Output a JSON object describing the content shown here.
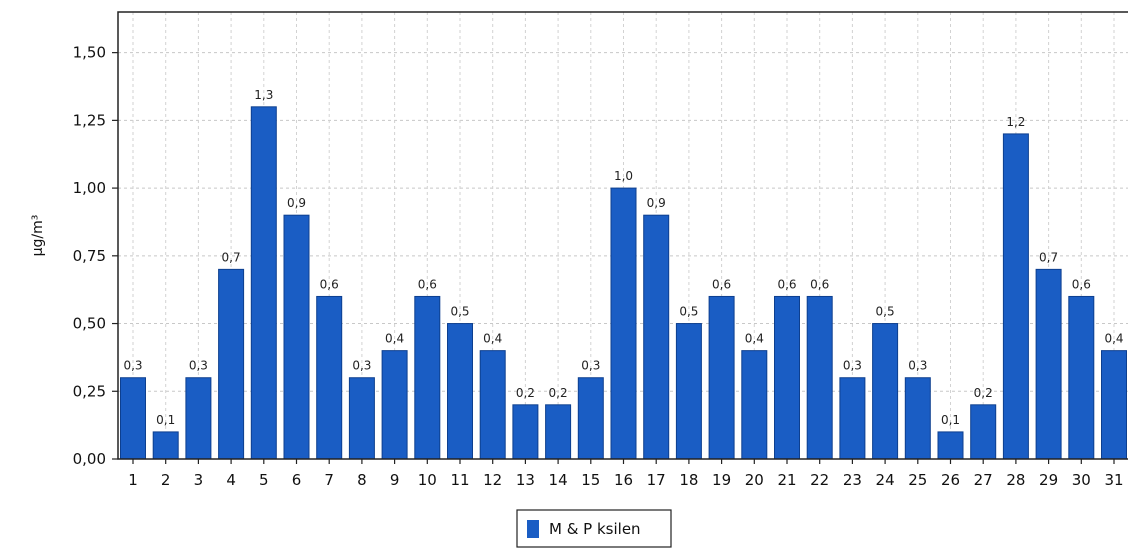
{
  "chart_data": {
    "type": "bar",
    "categories": [
      "1",
      "2",
      "3",
      "4",
      "5",
      "6",
      "7",
      "8",
      "9",
      "10",
      "11",
      "12",
      "13",
      "14",
      "15",
      "16",
      "17",
      "18",
      "19",
      "20",
      "21",
      "22",
      "23",
      "24",
      "25",
      "26",
      "27",
      "28",
      "29",
      "30",
      "31"
    ],
    "series": [
      {
        "name": "M & P ksilen",
        "values": [
          0.3,
          0.1,
          0.3,
          0.7,
          1.3,
          0.9,
          0.6,
          0.3,
          0.4,
          0.6,
          0.5,
          0.4,
          0.2,
          0.2,
          0.3,
          1.0,
          0.9,
          0.5,
          0.6,
          0.4,
          0.6,
          0.6,
          0.3,
          0.5,
          0.3,
          0.1,
          0.2,
          1.2,
          0.7,
          0.6,
          0.4
        ],
        "data_labels": [
          "0,3",
          "0,1",
          "0,3",
          "0,7",
          "1,3",
          "0,9",
          "0,6",
          "0,3",
          "0,4",
          "0,6",
          "0,5",
          "0,4",
          "0,2",
          "0,2",
          "0,3",
          "1,0",
          "0,9",
          "0,5",
          "0,6",
          "0,4",
          "0,6",
          "0,6",
          "0,3",
          "0,5",
          "0,3",
          "0,1",
          "0,2",
          "1,2",
          "0,7",
          "0,6",
          "0,4"
        ]
      }
    ],
    "ylabel": "µg/m³",
    "ylim": [
      0,
      1.65
    ],
    "yticks": [
      0,
      0.25,
      0.5,
      0.75,
      1.0,
      1.25,
      1.5
    ],
    "ytick_labels": [
      "0,00",
      "0,25",
      "0,50",
      "0,75",
      "1,00",
      "1,25",
      "1,50"
    ],
    "grid": true,
    "legend_position": "bottom-center",
    "bar_color": "#1a5dc4",
    "bar_edge_color": "#0d3f8f"
  }
}
